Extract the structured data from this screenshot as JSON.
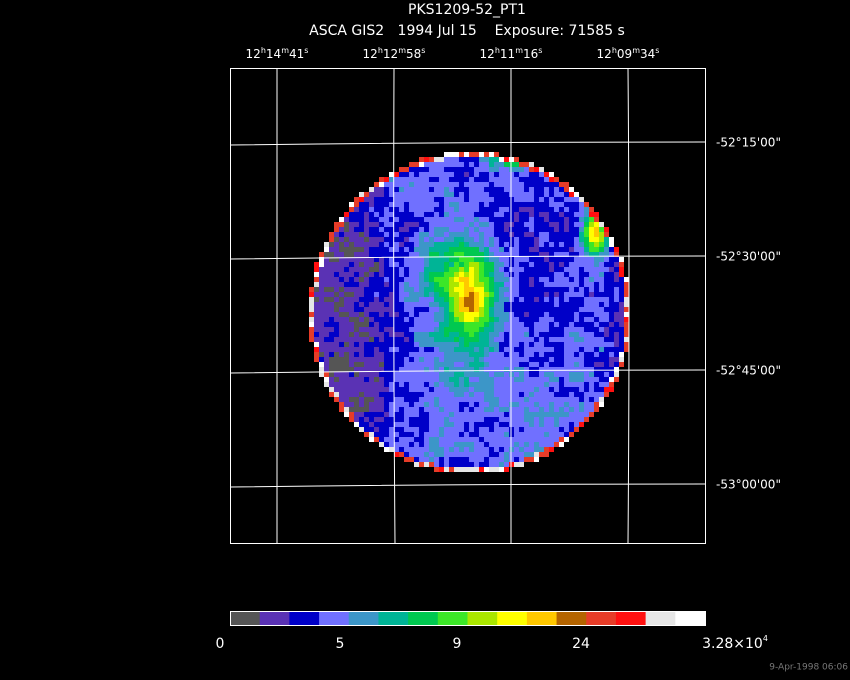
{
  "title": "PKS1209-52_PT1",
  "subtitle": "ASCA GIS2   1994 Jul 15    Exposure: 71585 s",
  "ra_labels": [
    [
      "12",
      "h",
      "14",
      "m",
      "41",
      "s"
    ],
    [
      "12",
      "h",
      "12",
      "m",
      "58",
      "s"
    ],
    [
      "12",
      "h",
      "11",
      "m",
      "16",
      "s"
    ],
    [
      "12",
      "h",
      "09",
      "m",
      "34",
      "s"
    ]
  ],
  "dec_labels": [
    "-52°15'00\"",
    "-52°30'00\"",
    "-52°45'00\"",
    "-53°00'00\""
  ],
  "colorbar": {
    "colors": [
      "#555555",
      "#5a32b4",
      "#0000c8",
      "#7070ff",
      "#3c96c8",
      "#00b496",
      "#00c850",
      "#3ce628",
      "#aae600",
      "#ffff00",
      "#ffc800",
      "#b46400",
      "#e63c28",
      "#ff1010",
      "#e6e6e6",
      "#ffffff"
    ],
    "labels": [
      "0",
      "5",
      "9",
      "24"
    ],
    "max_label": [
      "3.28×10",
      "4"
    ]
  },
  "timestamp": "9-Apr-1998 06:06"
}
